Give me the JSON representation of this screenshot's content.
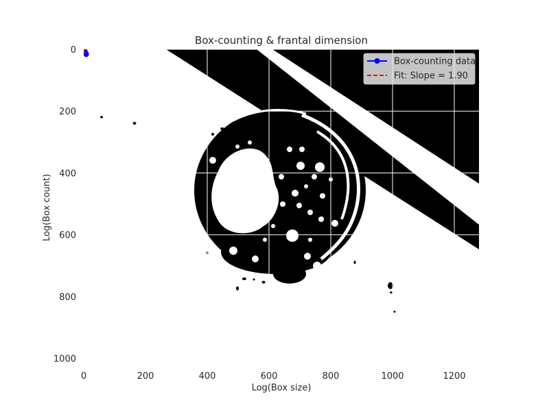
{
  "chart_data": {
    "type": "line",
    "title": "Box-counting & frantal dimension",
    "xlabel": "Log(Box size)",
    "ylabel": "Log(Box count)",
    "xlim": [
      0,
      1280
    ],
    "ylim": [
      1024,
      0
    ],
    "x_ticks": [
      0,
      200,
      400,
      600,
      800,
      1000,
      1200
    ],
    "y_ticks": [
      0,
      200,
      400,
      600,
      800,
      1000
    ],
    "grid": true,
    "legend_position": "top-right",
    "background_image": "binary-thresholded-image",
    "series": [
      {
        "name": "Box-counting data",
        "style": "line-with-markers",
        "color": "#0000ff",
        "x": [
          0,
          1,
          2,
          3,
          4,
          5,
          6,
          7,
          8
        ],
        "y": [
          0,
          1,
          3,
          6,
          8,
          10,
          12,
          14,
          16
        ]
      },
      {
        "name": "Fit: Slope = 1.90",
        "style": "dashed",
        "color": "#ff0000",
        "x": [
          0,
          8
        ],
        "y": [
          0.5,
          15.7
        ]
      }
    ]
  }
}
